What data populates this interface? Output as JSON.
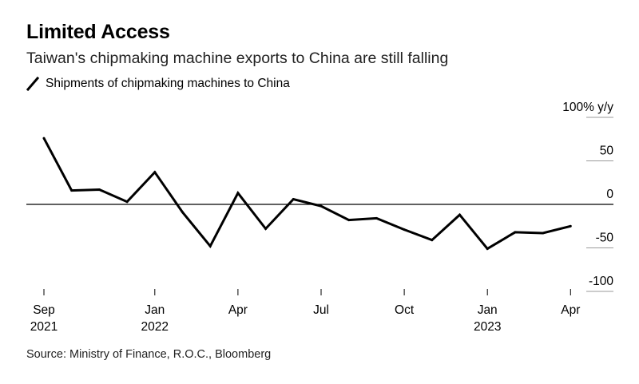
{
  "title": "Limited Access",
  "subtitle": "Taiwan's chipmaking machine exports to China are still falling",
  "legend_label": "Shipments of chipmaking machines to China",
  "source": "Source: Ministry of Finance, R.O.C., Bloomberg",
  "colors": {
    "line": "#000000",
    "grid": "#9a9a9a",
    "zero": "#000000"
  },
  "chart_data": {
    "type": "line",
    "title": "Limited Access",
    "subtitle": "Taiwan's chipmaking machine exports to China are still falling",
    "xlabel": "",
    "ylabel": "% y/y",
    "ylim": [
      -100,
      100
    ],
    "y_ticks": [
      {
        "value": 100,
        "label": "100% y/y"
      },
      {
        "value": 50,
        "label": "50"
      },
      {
        "value": 0,
        "label": "0"
      },
      {
        "value": -50,
        "label": "-50"
      },
      {
        "value": -100,
        "label": "-100"
      }
    ],
    "x_ticks": [
      {
        "index": 0,
        "line1": "Sep",
        "line2": "2021"
      },
      {
        "index": 4,
        "line1": "Jan",
        "line2": "2022"
      },
      {
        "index": 7,
        "line1": "Apr",
        "line2": ""
      },
      {
        "index": 10,
        "line1": "Jul",
        "line2": ""
      },
      {
        "index": 13,
        "line1": "Oct",
        "line2": ""
      },
      {
        "index": 16,
        "line1": "Jan",
        "line2": "2023"
      },
      {
        "index": 19,
        "line1": "Apr",
        "line2": ""
      }
    ],
    "series": [
      {
        "name": "Shipments of chipmaking machines to China",
        "x": [
          "2021-09",
          "2021-10",
          "2021-11",
          "2021-12",
          "2022-01",
          "2022-02",
          "2022-03",
          "2022-04",
          "2022-05",
          "2022-06",
          "2022-07",
          "2022-08",
          "2022-09",
          "2022-10",
          "2022-11",
          "2022-12",
          "2023-01",
          "2023-02",
          "2023-03",
          "2023-04"
        ],
        "values": [
          76,
          16,
          17,
          3,
          37,
          -9,
          -48,
          13,
          -28,
          6,
          -2,
          -18,
          -16,
          -29,
          -41,
          -12,
          -51,
          -32,
          -33,
          -25
        ]
      }
    ]
  }
}
